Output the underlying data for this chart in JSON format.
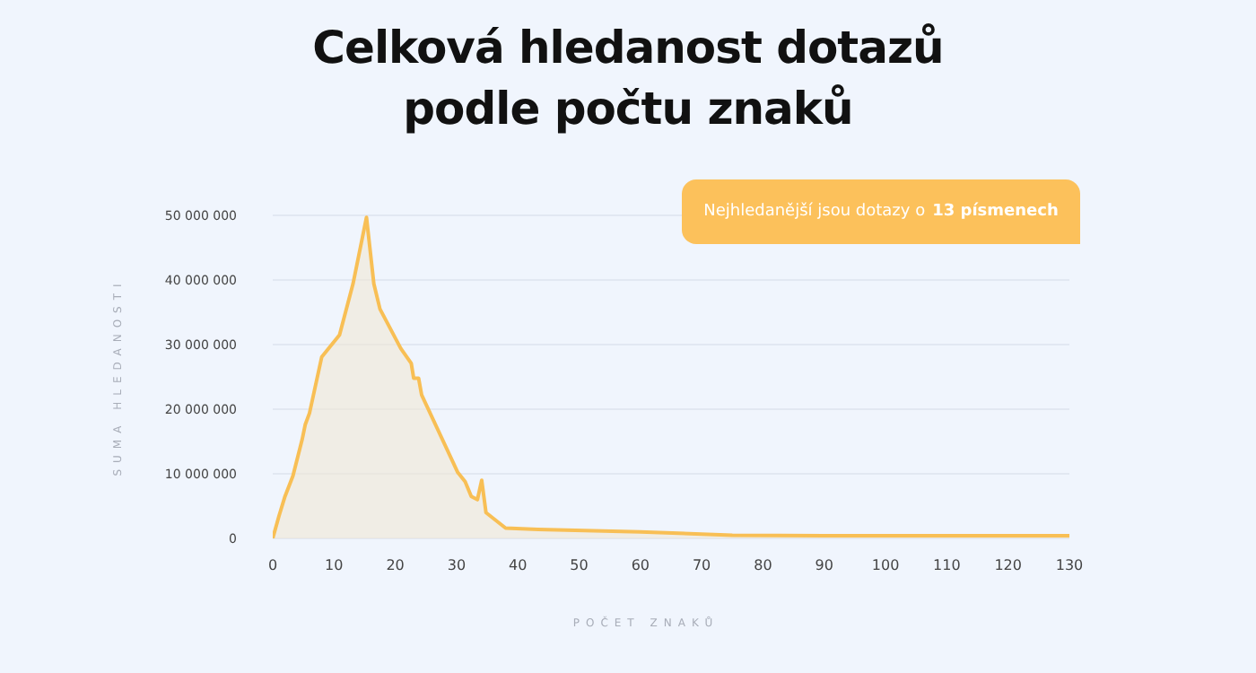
{
  "chart_data": {
    "type": "area",
    "title": "Celková hledanost dotazů\npodle počtu znaků",
    "xlabel": "POČET ZNAKŮ",
    "ylabel": "SUMA HLEDANOSTI",
    "annotations": [
      "Nejhledanější jsou dotazy o",
      "13 písmenech"
    ],
    "x": [
      0,
      1,
      2,
      3.3,
      4.8,
      5.3,
      6,
      8,
      10.9,
      13.1,
      15.3,
      16.5,
      17.5,
      20.9,
      22.6,
      23,
      23.8,
      24.3,
      30.2,
      31.4,
      32.4,
      33.4,
      34.1,
      34.8,
      38,
      43.3,
      60,
      75,
      90,
      110,
      130
    ],
    "series": [
      {
        "color": "#f8bf55",
        "values": [
          0,
          3400000,
          6500000,
          9700000,
          15300000,
          17600000,
          19400000,
          28100000,
          31500000,
          39400000,
          49700000,
          39400000,
          35500000,
          29400000,
          27100000,
          24800000,
          24800000,
          22200000,
          10200000,
          8800000,
          6500000,
          6000000,
          9000000,
          4000000,
          1600000,
          1400000,
          1000000,
          500000,
          400000,
          400000,
          400000
        ]
      }
    ],
    "xlim": [
      0,
      130
    ],
    "xticks": [
      0,
      10,
      20,
      30,
      40,
      50,
      60,
      70,
      80,
      90,
      100,
      110,
      120,
      130
    ],
    "ylim": [
      0,
      50000000
    ],
    "yticks": [
      0,
      10000000,
      20000000,
      30000000,
      40000000,
      50000000
    ],
    "grid": "y",
    "legend": false,
    "marker": "none"
  }
}
